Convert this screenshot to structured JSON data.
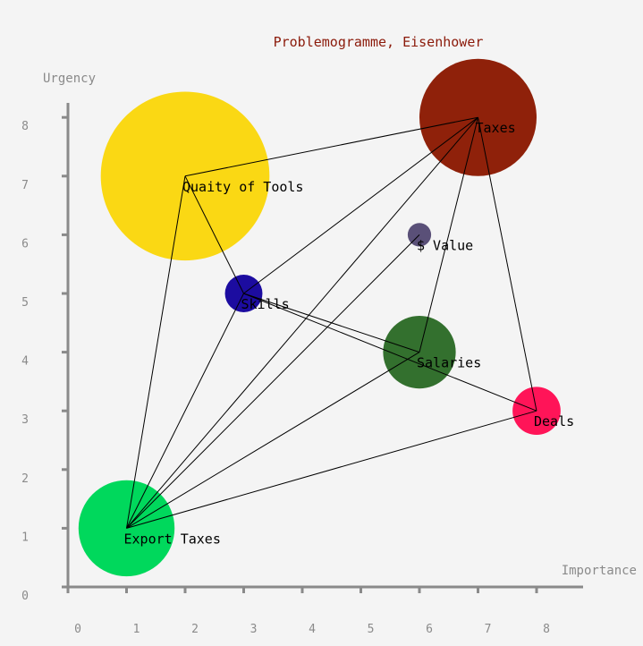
{
  "chart_data": {
    "type": "scatter",
    "title": "Problemogramme, Eisenhower",
    "xlabel": "Importance",
    "ylabel": "Urgency",
    "xlim": [
      0,
      8
    ],
    "ylim": [
      0,
      8
    ],
    "x_ticks": [
      "0",
      "1",
      "2",
      "3",
      "4",
      "5",
      "6",
      "7",
      "8"
    ],
    "y_ticks": [
      "0",
      "1",
      "2",
      "3",
      "4",
      "5",
      "6",
      "7",
      "8"
    ],
    "points": [
      {
        "label": "Quaity of Tools",
        "x": 2,
        "y": 7,
        "size": 1.44,
        "color": "#fad814"
      },
      {
        "label": "Taxes",
        "x": 7,
        "y": 8,
        "size": 1.0,
        "color": "#8f210a"
      },
      {
        "label": "$ Value",
        "x": 6,
        "y": 6,
        "size": 0.2,
        "color": "#5a5078"
      },
      {
        "label": "Skills",
        "x": 3,
        "y": 5,
        "size": 0.32,
        "color": "#1c0ca0"
      },
      {
        "label": "Salaries",
        "x": 6,
        "y": 4,
        "size": 0.62,
        "color": "#33702e"
      },
      {
        "label": "Deals",
        "x": 8,
        "y": 3,
        "size": 0.41,
        "color": "#ff1458"
      },
      {
        "label": "Export Taxes",
        "x": 1,
        "y": 1,
        "size": 0.82,
        "color": "#00d85c"
      }
    ],
    "links": [
      [
        6,
        0
      ],
      [
        0,
        1
      ],
      [
        0,
        3
      ],
      [
        3,
        1
      ],
      [
        3,
        4
      ],
      [
        3,
        5
      ],
      [
        1,
        4
      ],
      [
        1,
        5
      ],
      [
        6,
        1
      ],
      [
        6,
        2
      ],
      [
        6,
        3
      ],
      [
        6,
        5
      ],
      [
        6,
        4
      ]
    ]
  }
}
